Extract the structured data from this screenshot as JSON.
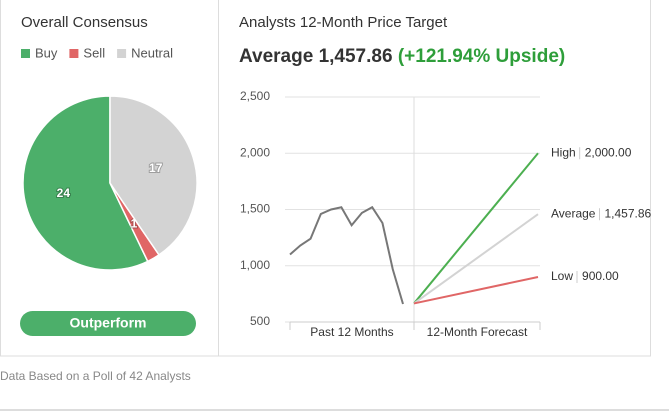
{
  "chart_data": [
    {
      "type": "pie",
      "title": "Overall Consensus",
      "categories": [
        "Buy",
        "Sell",
        "Neutral"
      ],
      "values": [
        24,
        1,
        17
      ],
      "colors": [
        "#4caf6a",
        "#e06666",
        "#d3d3d3"
      ],
      "rating": "Outperform"
    },
    {
      "type": "line",
      "title": "Analysts 12-Month Price Target",
      "headline": {
        "label": "Average",
        "value": "1,457.86",
        "upside": "(+121.94% Upside)"
      },
      "categories": [
        "Past 12 Months",
        "12-Month Forecast"
      ],
      "history": {
        "color": "#777777",
        "values": [
          1100,
          1180,
          1240,
          1460,
          1500,
          1520,
          1360,
          1470,
          1520,
          1380,
          970,
          660
        ]
      },
      "forecast": {
        "start": 665,
        "targets": [
          {
            "name": "High",
            "value": 2000,
            "label": "2,000.00",
            "color": "#4caf50"
          },
          {
            "name": "Average",
            "value": 1457.86,
            "label": "1,457.86",
            "color": "#d3d3d3"
          },
          {
            "name": "Low",
            "value": 900,
            "label": "900.00",
            "color": "#e06666"
          }
        ]
      },
      "ylim": [
        500,
        2500
      ],
      "yticks": [
        500,
        {
          "value": 1000,
          "label": "1,000"
        },
        {
          "value": 1500,
          "label": "1,500"
        },
        {
          "value": 2000,
          "label": "2,000"
        },
        {
          "value": 2500,
          "label": "2,500"
        }
      ],
      "grid": true
    }
  ],
  "footer": "Data Based on a Poll of 42 Analysts"
}
